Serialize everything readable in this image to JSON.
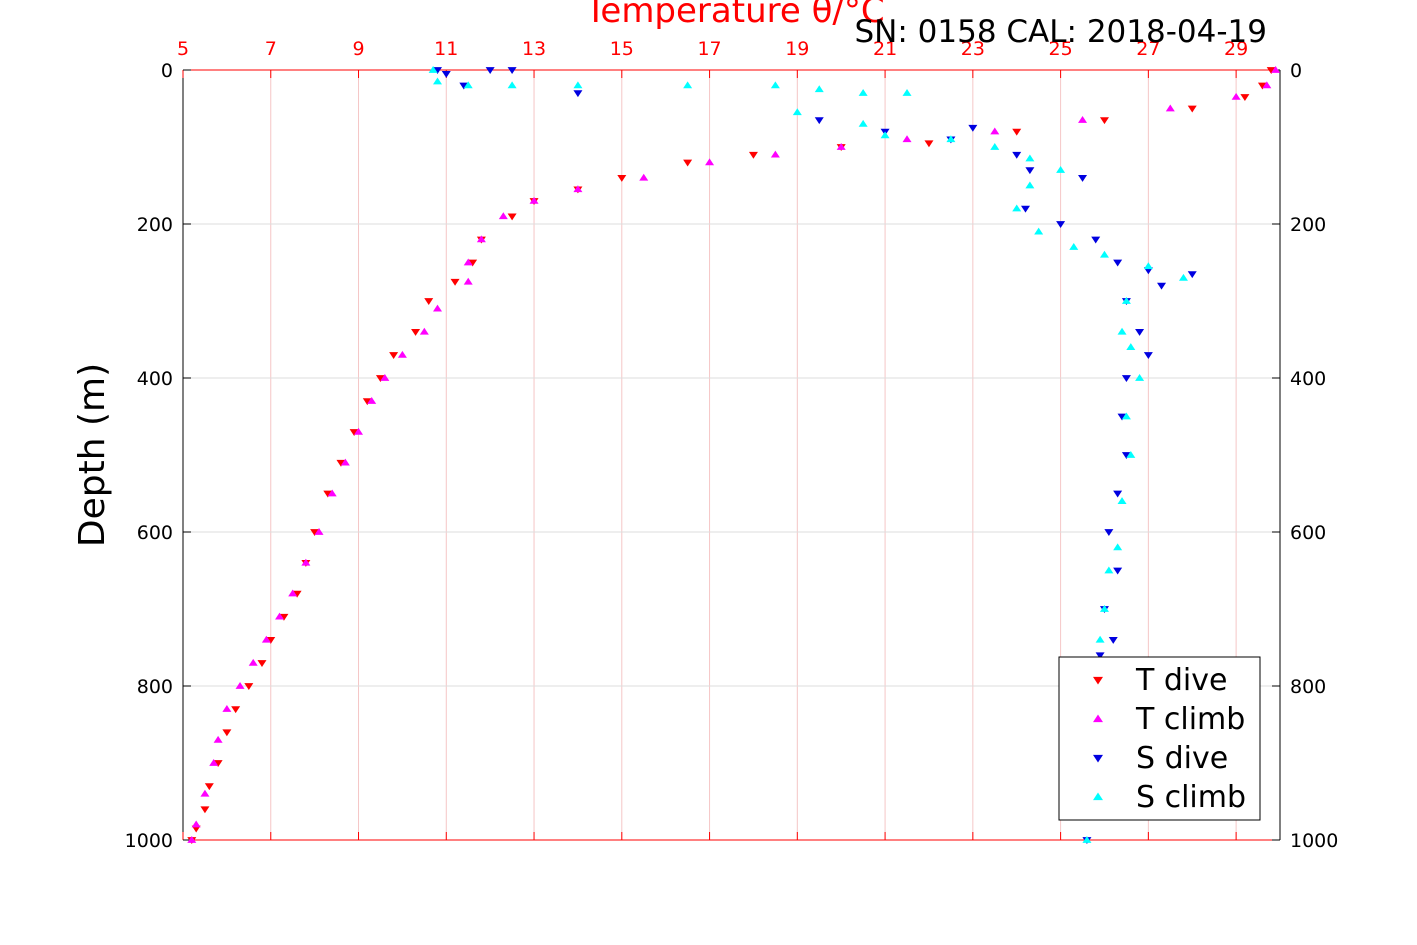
{
  "chart_data": {
    "type": "scatter",
    "title": "Temperature θ/°C",
    "annotation": "SN: 0158  CAL: 2018-04-19",
    "ylabel": "Depth (m)",
    "xlim": [
      5,
      30
    ],
    "xticks": [
      5,
      7,
      9,
      11,
      13,
      15,
      17,
      19,
      21,
      23,
      25,
      27,
      29
    ],
    "xtick_labels": [
      "5",
      "7",
      "9",
      "11",
      "13",
      "15",
      "17",
      "19",
      "21",
      "23",
      "25",
      "27",
      "29"
    ],
    "ylim": [
      0,
      1000
    ],
    "y_reversed": true,
    "yticks": [
      0,
      200,
      400,
      600,
      800,
      1000
    ],
    "ytick_labels": [
      "0",
      "200",
      "400",
      "600",
      "800",
      "1000"
    ],
    "grid": true,
    "legend_position": "bottom-right",
    "colors": {
      "t_dive": "#ff0000",
      "t_climb": "#ff00ff",
      "s_dive": "#0000e0",
      "s_climb": "#00ffff",
      "axis_top": "#ff0000"
    },
    "series": [
      {
        "name": "T dive",
        "marker": "triangle-down",
        "color": "#ff0000",
        "x": [
          29.8,
          29.6,
          29.2,
          28.0,
          26.0,
          24.0,
          22.0,
          20.0,
          18.0,
          16.5,
          15.0,
          14.0,
          13.0,
          12.5,
          11.8,
          11.6,
          11.2,
          10.6,
          10.3,
          9.8,
          9.5,
          9.2,
          8.9,
          8.6,
          8.3,
          8.0,
          7.8,
          7.6,
          7.3,
          7.0,
          6.8,
          6.5,
          6.2,
          6.0,
          5.8,
          5.6,
          5.5,
          5.3,
          5.2
        ],
        "y": [
          0,
          20,
          35,
          50,
          65,
          80,
          95,
          100,
          110,
          120,
          140,
          155,
          170,
          190,
          220,
          250,
          275,
          300,
          340,
          370,
          400,
          430,
          470,
          510,
          550,
          600,
          640,
          680,
          710,
          740,
          770,
          800,
          830,
          860,
          900,
          930,
          960,
          985,
          1000
        ]
      },
      {
        "name": "T climb",
        "marker": "triangle-up",
        "color": "#ff00ff",
        "x": [
          29.9,
          29.7,
          29.0,
          27.5,
          25.5,
          23.5,
          21.5,
          20.0,
          18.5,
          17.0,
          15.5,
          14.0,
          13.0,
          12.3,
          11.8,
          11.5,
          11.5,
          10.8,
          10.5,
          10.0,
          9.6,
          9.3,
          9.0,
          8.7,
          8.4,
          8.1,
          7.8,
          7.5,
          7.2,
          6.9,
          6.6,
          6.3,
          6.0,
          5.8,
          5.7,
          5.5,
          5.3,
          5.2
        ],
        "y": [
          0,
          20,
          35,
          50,
          65,
          80,
          90,
          100,
          110,
          120,
          140,
          155,
          170,
          190,
          220,
          250,
          275,
          310,
          340,
          370,
          400,
          430,
          470,
          510,
          550,
          600,
          640,
          680,
          710,
          740,
          770,
          800,
          830,
          870,
          900,
          940,
          980,
          1000
        ]
      },
      {
        "name": "S dive",
        "marker": "triangle-down",
        "color": "#0000e0",
        "x": [
          10.8,
          11.0,
          11.4,
          12.0,
          12.5,
          14.0,
          19.5,
          21.0,
          22.5,
          23.0,
          24.0,
          24.3,
          25.5,
          24.2,
          25.0,
          25.8,
          26.3,
          27.0,
          28.0,
          27.3,
          26.5,
          26.8,
          27.0,
          26.5,
          26.4,
          26.5,
          26.3,
          26.1,
          26.3,
          26.0,
          26.2,
          25.9,
          25.8,
          25.6,
          25.6,
          25.6
        ],
        "y": [
          0,
          5,
          20,
          0,
          0,
          30,
          65,
          80,
          90,
          75,
          110,
          130,
          140,
          180,
          200,
          220,
          250,
          260,
          265,
          280,
          300,
          340,
          370,
          400,
          450,
          500,
          550,
          600,
          650,
          700,
          740,
          760,
          800,
          900,
          960,
          1000
        ]
      },
      {
        "name": "S climb",
        "marker": "triangle-up",
        "color": "#00ffff",
        "x": [
          10.7,
          10.8,
          11.5,
          12.5,
          14.0,
          16.5,
          18.5,
          19.5,
          20.5,
          21.5,
          19.0,
          20.5,
          21.0,
          22.5,
          23.5,
          24.3,
          25.0,
          24.3,
          24.0,
          24.5,
          25.3,
          26.0,
          27.0,
          27.8,
          26.5,
          26.4,
          26.6,
          26.8,
          26.5,
          26.6,
          26.4,
          26.3,
          26.1,
          26.0,
          25.9,
          25.8,
          25.7,
          25.6
        ],
        "y": [
          0,
          15,
          20,
          20,
          20,
          20,
          20,
          25,
          30,
          30,
          55,
          70,
          85,
          90,
          100,
          115,
          130,
          150,
          180,
          210,
          230,
          240,
          255,
          270,
          300,
          340,
          360,
          400,
          450,
          500,
          560,
          620,
          650,
          700,
          740,
          800,
          900,
          1000
        ]
      }
    ]
  }
}
